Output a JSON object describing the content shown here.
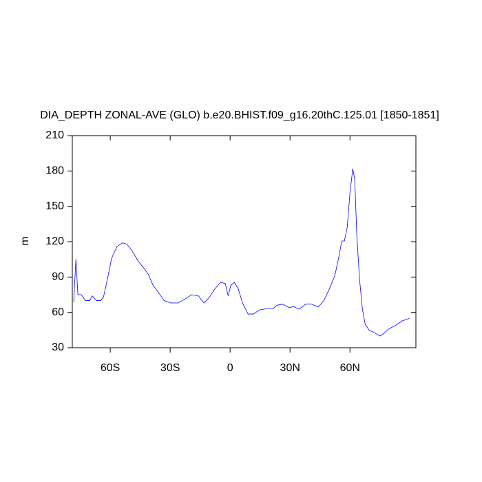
{
  "chart_data": {
    "type": "line",
    "title": "DIA_DEPTH ZONAL-AVE (GLO) b.e20.BHIST.f09_g16.20thC.125.01 [1850-1851]",
    "ylabel": "m",
    "xlim": [
      -79,
      93
    ],
    "xticks": [
      {
        "value": -60,
        "label": "60S"
      },
      {
        "value": -30,
        "label": "30S"
      },
      0,
      {
        "value": 30,
        "label": "30N"
      },
      {
        "value": 60,
        "label": "60N"
      }
    ],
    "ylim": [
      30,
      210
    ],
    "yticks": [
      30,
      60,
      90,
      120,
      150,
      180,
      210
    ],
    "grid": false,
    "series": [
      {
        "color": "#0000ff",
        "x": [
          -78.3,
          -77.2,
          -76.2,
          -74.5,
          -72.4,
          -70.3,
          -69,
          -66.9,
          -64.8,
          -63.4,
          -61.7,
          -59.3,
          -56.6,
          -53.8,
          -51.7,
          -49,
          -46.2,
          -43.4,
          -41,
          -38.6,
          -35.9,
          -33.1,
          -29.7,
          -26.2,
          -22.8,
          -19.3,
          -15.9,
          -13.1,
          -10.3,
          -7.6,
          -4.8,
          -2.4,
          -1,
          0.3,
          2.1,
          4.1,
          6.2,
          9,
          11.7,
          14.5,
          17.9,
          21.4,
          23.4,
          26.2,
          29.7,
          31.7,
          34.5,
          37.9,
          40.7,
          44.1,
          46.9,
          49.7,
          52.4,
          54.5,
          55.9,
          57.2,
          58.6,
          60,
          61.4,
          62.4,
          63.4,
          64.8,
          66.2,
          67.6,
          69.7,
          71.7,
          73.8,
          75.2,
          76.6,
          79.3,
          82.8,
          86.2,
          89.7
        ],
        "values": [
          69,
          105,
          75,
          75,
          70,
          70,
          74,
          70,
          70,
          73,
          86,
          106,
          116,
          119,
          118,
          112,
          104,
          98,
          92.5,
          83,
          77,
          70,
          68,
          68,
          71,
          75,
          74,
          68,
          73,
          80,
          85.5,
          84.5,
          74,
          82.6,
          85.5,
          80,
          68,
          58.6,
          58.6,
          62,
          63,
          63,
          66,
          67,
          64,
          65,
          62.7,
          67,
          67,
          64.5,
          70,
          80,
          91,
          107.7,
          120.6,
          120.6,
          132,
          161.5,
          182,
          173,
          126,
          88,
          63,
          50,
          44.6,
          43.4,
          41,
          40,
          41.7,
          45.8,
          49,
          52.8,
          55
        ]
      }
    ]
  }
}
